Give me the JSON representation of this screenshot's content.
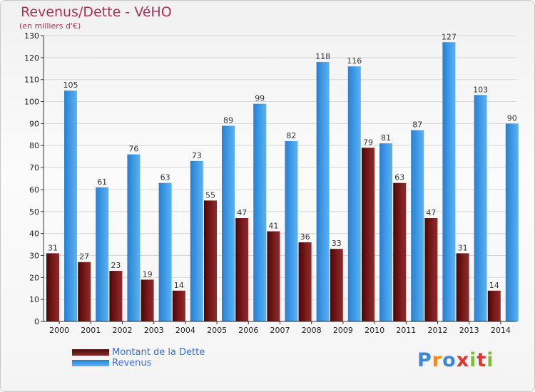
{
  "header": {
    "title": "Revenus/Dette - VéHO",
    "subtitle": "(en milliers d'€)"
  },
  "legend": [
    {
      "label": "Montant de la Dette",
      "color": "#6e1212"
    },
    {
      "label": "Revenus",
      "color": "#3a95df"
    }
  ],
  "logo": {
    "text": "Proxiti",
    "letter_colors": [
      "#3f86d8",
      "#f08a1c",
      "#3f86d8",
      "#e5322d",
      "#7cbd3a",
      "#e5322d",
      "#7cbd3a"
    ]
  },
  "colors": {
    "title": "#b0305a",
    "dette": "#6e1212",
    "revenus": "#3a95df"
  },
  "chart_data": {
    "type": "bar",
    "categories": [
      "2000",
      "2001",
      "2002",
      "2003",
      "2004",
      "2005",
      "2006",
      "2007",
      "2008",
      "2009",
      "2010",
      "2011",
      "2012",
      "2013",
      "2014"
    ],
    "series": [
      {
        "name": "Montant de la Dette",
        "values": [
          31,
          27,
          23,
          19,
          14,
          55,
          47,
          41,
          36,
          33,
          79,
          63,
          47,
          31,
          14
        ]
      },
      {
        "name": "Revenus",
        "values": [
          105,
          61,
          76,
          63,
          73,
          89,
          99,
          82,
          118,
          116,
          81,
          87,
          127,
          103,
          90
        ]
      }
    ],
    "ylim": [
      0,
      130
    ],
    "yticks": [
      0,
      10,
      20,
      30,
      40,
      50,
      60,
      70,
      80,
      90,
      100,
      110,
      120,
      130
    ],
    "grid": true,
    "data_labels": true,
    "legend_position": "bottom-left"
  }
}
